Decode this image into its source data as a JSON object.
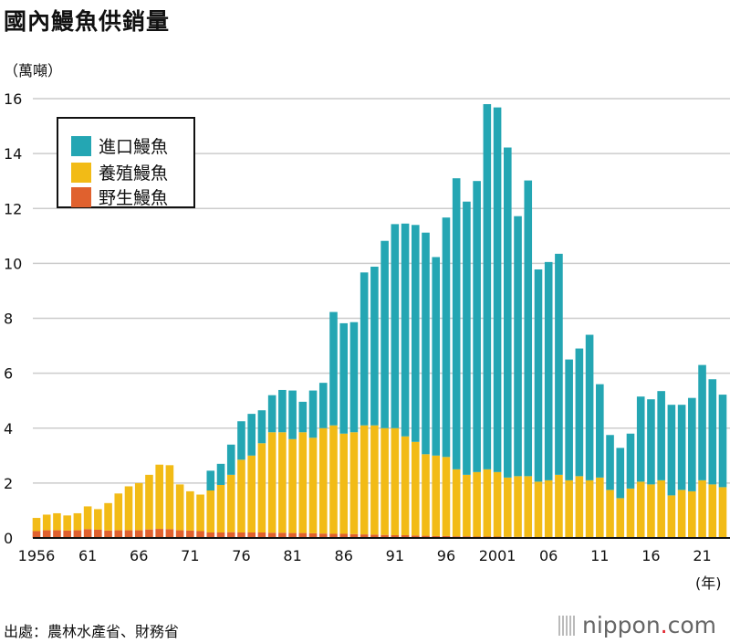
{
  "title": "國內鰻魚供銷量",
  "unit_label": "（萬噸）",
  "x_unit_label": "(年)",
  "source": "出處：農林水產省、財務省",
  "logo": {
    "text": "nippon",
    "dot": ".",
    "suffix": "com"
  },
  "chart_data": {
    "type": "bar",
    "stacked": true,
    "title": "國內鰻魚供銷量",
    "ylabel": "（萬噸）",
    "xlabel": "(年)",
    "ylim": [
      0,
      16
    ],
    "yticks": [
      0,
      2,
      4,
      6,
      8,
      10,
      12,
      14,
      16
    ],
    "xtick_labels": [
      {
        "year": 1956,
        "label": "1956"
      },
      {
        "year": 1961,
        "label": "61"
      },
      {
        "year": 1966,
        "label": "66"
      },
      {
        "year": 1971,
        "label": "71"
      },
      {
        "year": 1976,
        "label": "76"
      },
      {
        "year": 1981,
        "label": "81"
      },
      {
        "year": 1986,
        "label": "86"
      },
      {
        "year": 1991,
        "label": "91"
      },
      {
        "year": 1996,
        "label": "96"
      },
      {
        "year": 2001,
        "label": "2001"
      },
      {
        "year": 2006,
        "label": "06"
      },
      {
        "year": 2011,
        "label": "11"
      },
      {
        "year": 2016,
        "label": "16"
      },
      {
        "year": 2021,
        "label": "21"
      }
    ],
    "grid": true,
    "legend": "top-left",
    "years_start": 1956,
    "years_end": 2023,
    "series": [
      {
        "name": "野生鰻魚",
        "color": "#e0612e",
        "values": [
          0.25,
          0.28,
          0.28,
          0.27,
          0.28,
          0.32,
          0.3,
          0.27,
          0.28,
          0.28,
          0.28,
          0.31,
          0.33,
          0.32,
          0.28,
          0.27,
          0.25,
          0.2,
          0.2,
          0.21,
          0.2,
          0.2,
          0.2,
          0.19,
          0.19,
          0.18,
          0.18,
          0.17,
          0.16,
          0.15,
          0.15,
          0.14,
          0.13,
          0.12,
          0.11,
          0.1,
          0.1,
          0.09,
          0.08,
          0.07,
          0.07,
          0.06,
          0.06,
          0.05,
          0.05,
          0.05,
          0.04,
          0.04,
          0.04,
          0.03,
          0.03,
          0.03,
          0.03,
          0.03,
          0.02,
          0.02,
          0.02,
          0.02,
          0.01,
          0.01,
          0.01,
          0.01,
          0.01,
          0.01,
          0.01,
          0.01,
          0.01,
          0.01
        ]
      },
      {
        "name": "養殖鰻魚",
        "color": "#f2bb16",
        "values": [
          0.48,
          0.57,
          0.62,
          0.55,
          0.62,
          0.83,
          0.75,
          1.0,
          1.34,
          1.6,
          1.72,
          1.99,
          2.34,
          2.33,
          1.67,
          1.43,
          1.33,
          1.53,
          1.73,
          2.09,
          2.65,
          2.8,
          3.25,
          3.66,
          3.66,
          3.42,
          3.67,
          3.48,
          3.84,
          3.95,
          3.65,
          3.71,
          3.97,
          3.98,
          3.89,
          3.9,
          3.6,
          3.41,
          2.97,
          2.93,
          2.88,
          2.44,
          2.24,
          2.35,
          2.45,
          2.35,
          2.16,
          2.21,
          2.21,
          2.02,
          2.07,
          2.27,
          2.07,
          2.22,
          2.08,
          2.18,
          1.73,
          1.43,
          1.79,
          2.04,
          1.94,
          2.09,
          1.54,
          1.74,
          1.69,
          2.09,
          1.94,
          1.84
        ]
      },
      {
        "name": "進口鰻魚",
        "color": "#24a6b3",
        "values": [
          0,
          0,
          0,
          0,
          0,
          0,
          0,
          0,
          0,
          0,
          0,
          0,
          0,
          0,
          0,
          0,
          0,
          0.72,
          0.77,
          1.1,
          1.4,
          1.52,
          1.2,
          1.35,
          1.54,
          1.77,
          1.11,
          1.72,
          1.65,
          4.13,
          4.02,
          4.01,
          5.57,
          5.78,
          6.82,
          7.43,
          7.75,
          7.9,
          8.07,
          7.23,
          8.72,
          10.6,
          9.95,
          10.6,
          13.3,
          13.28,
          12.02,
          9.47,
          10.77,
          7.73,
          7.95,
          8.05,
          4.4,
          4.65,
          5.3,
          3.4,
          2.0,
          1.83,
          2.0,
          3.1,
          3.1,
          3.25,
          3.3,
          3.1,
          3.4,
          4.2,
          3.83,
          3.37
        ]
      }
    ]
  },
  "legend_items": [
    {
      "label": "進口鰻魚",
      "color": "#24a6b3"
    },
    {
      "label": "養殖鰻魚",
      "color": "#f2bb16"
    },
    {
      "label": "野生鰻魚",
      "color": "#e0612e"
    }
  ]
}
